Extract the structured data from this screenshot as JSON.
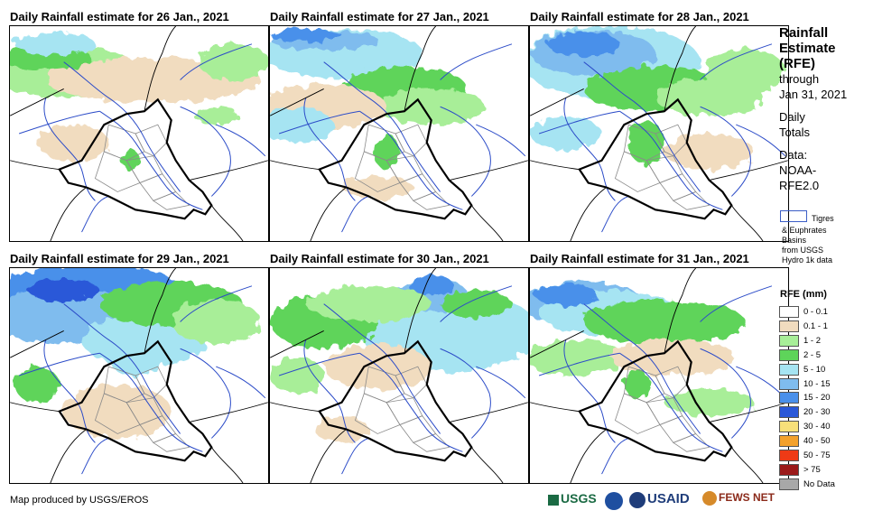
{
  "panels": [
    {
      "title": "Daily Rainfall estimate for 26 Jan., 2021"
    },
    {
      "title": "Daily Rainfall estimate for 27 Jan., 2021"
    },
    {
      "title": "Daily Rainfall estimate for 28 Jan., 2021"
    },
    {
      "title": "Daily Rainfall estimate for 29 Jan., 2021"
    },
    {
      "title": "Daily Rainfall estimate for 30 Jan., 2021"
    },
    {
      "title": "Daily Rainfall estimate for 31 Jan., 2021"
    }
  ],
  "sidebar": {
    "title_lines": [
      "Rainfall",
      "Estimate",
      "(RFE)"
    ],
    "through": "through",
    "date": "Jan 31, 2021",
    "daily": "Daily",
    "totals": "Totals",
    "data_label": "Data:",
    "data_src1": "NOAA-",
    "data_src2": "RFE2.0",
    "basin_lines": [
      "Tigres",
      "& Euphrates",
      "Basins",
      "from USGS",
      "Hydro 1k data"
    ]
  },
  "legend": {
    "title": "RFE (mm)",
    "items": [
      {
        "label": "0 - 0.1",
        "color": "#ffffff"
      },
      {
        "label": "0.1 - 1",
        "color": "#f1dcbf"
      },
      {
        "label": "1 - 2",
        "color": "#a8ee98"
      },
      {
        "label": "2 - 5",
        "color": "#5ed45a"
      },
      {
        "label": "5 - 10",
        "color": "#a6e4f2"
      },
      {
        "label": "10 - 15",
        "color": "#7fbcee"
      },
      {
        "label": "15 - 20",
        "color": "#4a90ea"
      },
      {
        "label": "20 - 30",
        "color": "#2a58d8"
      },
      {
        "label": "30 - 40",
        "color": "#f7e07a"
      },
      {
        "label": "40 - 50",
        "color": "#f3a12b"
      },
      {
        "label": "50 - 75",
        "color": "#ee3a16"
      },
      {
        "label": "> 75",
        "color": "#9b1a1a"
      },
      {
        "label": "No Data",
        "color": "#a8a8a8"
      }
    ]
  },
  "footer": {
    "credit": "Map produced by USGS/EROS",
    "logos": [
      "USGS",
      "USAID",
      "FEWS NET"
    ]
  }
}
